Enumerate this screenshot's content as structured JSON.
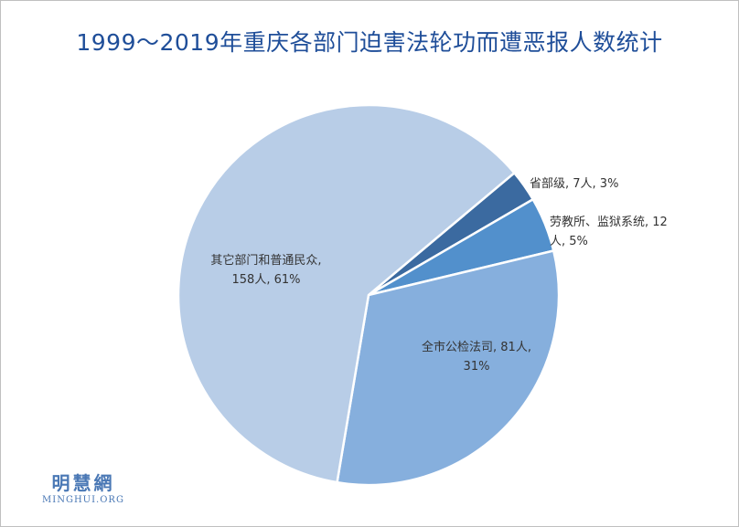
{
  "chart_data": {
    "type": "pie",
    "title": "1999～2019年重庆各部门迫害法轮功而遭恶报人数统计",
    "slices": [
      {
        "name": "省部级",
        "value": 7,
        "unit": "人",
        "percent": "3%",
        "color": "#3b6aa0",
        "label_lines": [
          "省部级, 7人, 3%"
        ]
      },
      {
        "name": "劳教所、监狱系统",
        "value": 12,
        "unit": "人",
        "percent": "5%",
        "color": "#5290cc",
        "label_lines": [
          "劳教所、监狱系统, 12",
          "人, 5%"
        ]
      },
      {
        "name": "全市公检法司",
        "value": 81,
        "unit": "人",
        "percent": "31%",
        "color": "#86afdd",
        "label_lines": [
          "全市公检法司, 81人,",
          "31%"
        ]
      },
      {
        "name": "其它部门和普通民众",
        "value": 158,
        "unit": "人",
        "percent": "61%",
        "color": "#b8cde7",
        "label_lines": [
          "其它部门和普通民众,",
          "158人, 61%"
        ]
      }
    ],
    "legend": "none"
  },
  "watermark": {
    "logo": "明慧網",
    "site": "MINGHUI.ORG"
  }
}
